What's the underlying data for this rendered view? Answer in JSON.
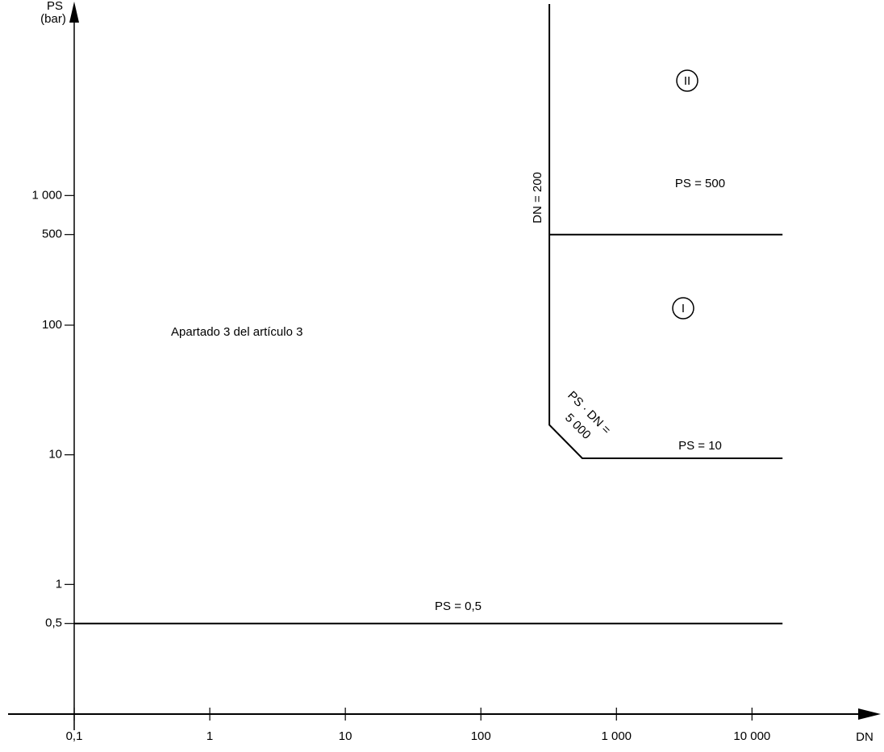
{
  "chart_data": {
    "type": "line",
    "x_label": "DN",
    "y_label": [
      "PS",
      "(bar)"
    ],
    "log_x": true,
    "log_y": true,
    "xlim": [
      0.0325,
      81000
    ],
    "ylim": [
      0.1,
      30000
    ],
    "xticks": [
      {
        "value": 0.1,
        "label": "0,1"
      },
      1,
      10,
      100,
      {
        "value": 1000,
        "label": "1 000"
      },
      {
        "value": 10000,
        "label": "10 000"
      }
    ],
    "yticks": [
      {
        "value": 0.5,
        "label": "0,5"
      },
      1,
      10,
      100,
      500,
      {
        "value": 1000,
        "label": "1 000"
      }
    ],
    "color": "#000000",
    "lines": [
      {
        "x": [
          0.1,
          16800
        ],
        "y": [
          0.5,
          0.5
        ]
      },
      {
        "x": [
          320,
          16800
        ],
        "y": [
          500,
          500
        ]
      },
      {
        "x": [
          320,
          320,
          560,
          16800
        ],
        "y": [
          30000,
          17,
          9.4,
          9.4
        ]
      }
    ],
    "annotations": {
      "region": "Apartado 3 del artículo 3",
      "ps500": "PS = 500",
      "ps10": "PS = 10",
      "ps05": "PS = 0,5",
      "dn200": "DN = 200",
      "psdn1": "PS · DN =",
      "psdn2": "5 000",
      "cat1": "I",
      "cat2": "II"
    }
  }
}
